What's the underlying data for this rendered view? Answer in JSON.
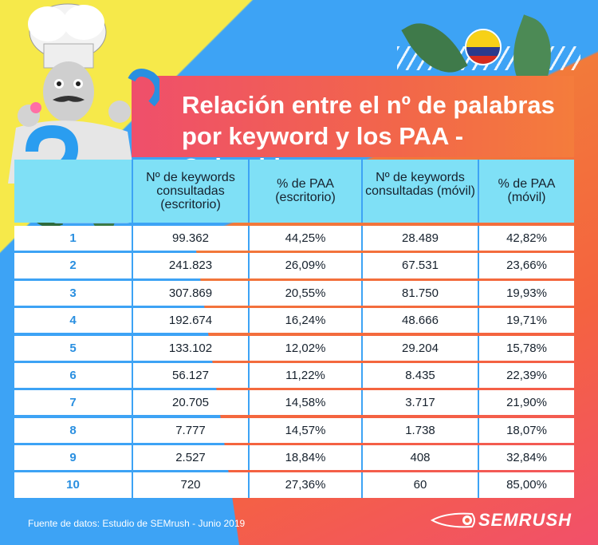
{
  "title": {
    "line1": "Relación entre el nº de palabras",
    "line2": "por keyword y los PAA - Colombia"
  },
  "table": {
    "headers": [
      "",
      "Nº de keywords consultadas (escritorio)",
      "% de PAA (escritorio)",
      "Nº de keywords consultadas (móvil)",
      "% de PAA (móvil)"
    ],
    "rows": [
      [
        "1",
        "99.362",
        "44,25%",
        "28.489",
        "42,82%"
      ],
      [
        "2",
        "241.823",
        "26,09%",
        "67.531",
        "23,66%"
      ],
      [
        "3",
        "307.869",
        "20,55%",
        "81.750",
        "19,93%"
      ],
      [
        "4",
        "192.674",
        "16,24%",
        "48.666",
        "19,71%"
      ],
      [
        "5",
        "133.102",
        "12,02%",
        "29.204",
        "15,78%"
      ],
      [
        "6",
        "56.127",
        "11,22%",
        "8.435",
        "22,39%"
      ],
      [
        "7",
        "20.705",
        "14,58%",
        "3.717",
        "21,90%"
      ],
      [
        "8",
        "7.777",
        "14,57%",
        "1.738",
        "18,07%"
      ],
      [
        "9",
        "2.527",
        "18,84%",
        "408",
        "32,84%"
      ],
      [
        "10",
        "720",
        "27,36%",
        "60",
        "85,00%"
      ]
    ]
  },
  "footer": {
    "source": "Fuente de datos: Estudio de SEMrush - Junio 2019"
  },
  "logo": {
    "text": "SEMRUSH",
    "icon": "semrush-fire-icon"
  },
  "flag": {
    "icon": "colombia-flag-icon",
    "colors": [
      "#f7d117",
      "#2a3a8c",
      "#d52b1e"
    ]
  },
  "illustration": {
    "icon": "chef-with-question-mark-illustration"
  }
}
